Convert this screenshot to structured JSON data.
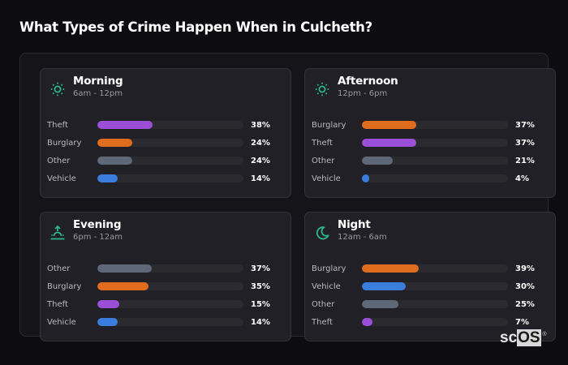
{
  "title": "What Types of Crime Happen When in Culcheth?",
  "colors": {
    "background": "#0d0d11",
    "accent_icon": "#2bb58c",
    "Theft": "#9b4fd6",
    "Burglary": "#e06c1e",
    "Other": "#5f6878",
    "Vehicle": "#3b7ddd",
    "track": "#2a2a2f"
  },
  "panels": [
    {
      "name": "Morning",
      "range": "6am - 12pm",
      "icon": "sun-icon",
      "rows": [
        {
          "label": "Theft",
          "value": 38,
          "value_label": "38%"
        },
        {
          "label": "Burglary",
          "value": 24,
          "value_label": "24%"
        },
        {
          "label": "Other",
          "value": 24,
          "value_label": "24%"
        },
        {
          "label": "Vehicle",
          "value": 14,
          "value_label": "14%"
        }
      ]
    },
    {
      "name": "Afternoon",
      "range": "12pm - 6pm",
      "icon": "sun-icon",
      "rows": [
        {
          "label": "Burglary",
          "value": 37,
          "value_label": "37%"
        },
        {
          "label": "Theft",
          "value": 37,
          "value_label": "37%"
        },
        {
          "label": "Other",
          "value": 21,
          "value_label": "21%"
        },
        {
          "label": "Vehicle",
          "value": 4,
          "value_label": "4%"
        }
      ]
    },
    {
      "name": "Evening",
      "range": "6pm - 12am",
      "icon": "sunset-icon",
      "rows": [
        {
          "label": "Other",
          "value": 37,
          "value_label": "37%"
        },
        {
          "label": "Burglary",
          "value": 35,
          "value_label": "35%"
        },
        {
          "label": "Theft",
          "value": 15,
          "value_label": "15%"
        },
        {
          "label": "Vehicle",
          "value": 14,
          "value_label": "14%"
        }
      ]
    },
    {
      "name": "Night",
      "range": "12am - 6am",
      "icon": "moon-icon",
      "rows": [
        {
          "label": "Burglary",
          "value": 39,
          "value_label": "39%"
        },
        {
          "label": "Vehicle",
          "value": 30,
          "value_label": "30%"
        },
        {
          "label": "Other",
          "value": 25,
          "value_label": "25%"
        },
        {
          "label": "Theft",
          "value": 7,
          "value_label": "7%"
        }
      ]
    }
  ],
  "logo": {
    "part1": "sc",
    "part2": "OS",
    "reg": "®"
  },
  "chart_data": [
    {
      "type": "bar",
      "orientation": "horizontal",
      "title": "Morning (6am - 12pm)",
      "categories": [
        "Theft",
        "Burglary",
        "Other",
        "Vehicle"
      ],
      "values": [
        38,
        24,
        24,
        14
      ],
      "unit": "%",
      "xlim": [
        0,
        100
      ]
    },
    {
      "type": "bar",
      "orientation": "horizontal",
      "title": "Afternoon (12pm - 6pm)",
      "categories": [
        "Burglary",
        "Theft",
        "Other",
        "Vehicle"
      ],
      "values": [
        37,
        37,
        21,
        4
      ],
      "unit": "%",
      "xlim": [
        0,
        100
      ]
    },
    {
      "type": "bar",
      "orientation": "horizontal",
      "title": "Evening (6pm - 12am)",
      "categories": [
        "Other",
        "Burglary",
        "Theft",
        "Vehicle"
      ],
      "values": [
        37,
        35,
        15,
        14
      ],
      "unit": "%",
      "xlim": [
        0,
        100
      ]
    },
    {
      "type": "bar",
      "orientation": "horizontal",
      "title": "Night (12am - 6am)",
      "categories": [
        "Burglary",
        "Vehicle",
        "Other",
        "Theft"
      ],
      "values": [
        39,
        30,
        25,
        7
      ],
      "unit": "%",
      "xlim": [
        0,
        100
      ]
    }
  ]
}
